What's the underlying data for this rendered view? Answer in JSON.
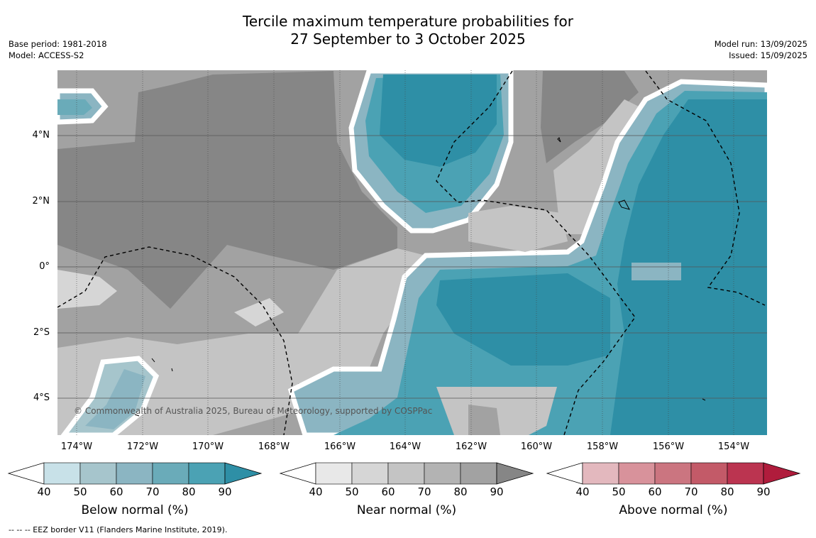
{
  "title_line1": "Tercile maximum temperature probabilities for",
  "title_line2": "27 September to 3 October 2025",
  "base_period": "Base period: 1981-2018",
  "model": "Model: ACCESS-S2",
  "model_run": "Model run: 13/09/2025",
  "issued": "Issued: 15/09/2025",
  "copyright": "© Commonwealth of Australia 2025, Bureau of Meteorology, supported by COSPPac",
  "footnote": "--  --  -- EEZ border V11 (Flanders Marine Institute, 2019).",
  "lat_labels": [
    "4°N",
    "2°N",
    "0°",
    "2°S",
    "4°S"
  ],
  "lon_labels": [
    "174°W",
    "172°W",
    "170°W",
    "168°W",
    "166°W",
    "164°W",
    "162°W",
    "160°W",
    "158°W",
    "156°W",
    "154°W"
  ],
  "colorbars": [
    {
      "name": "below",
      "label": "Below normal (%)",
      "ticks": [
        "40",
        "50",
        "60",
        "70",
        "80",
        "90"
      ],
      "colors": [
        "#c8e1e8",
        "#a6c5cc",
        "#8bb5c2",
        "#6aabb9",
        "#4ba2b4",
        "#2e8fa6"
      ]
    },
    {
      "name": "near",
      "label": "Near normal (%)",
      "ticks": [
        "40",
        "50",
        "60",
        "70",
        "80",
        "90"
      ],
      "colors": [
        "#e8e8e8",
        "#d6d6d6",
        "#c4c4c4",
        "#b3b3b3",
        "#a2a2a2",
        "#868686"
      ]
    },
    {
      "name": "above",
      "label": "Above normal (%)",
      "ticks": [
        "40",
        "50",
        "60",
        "70",
        "80",
        "90"
      ],
      "colors": [
        "#e3b8be",
        "#d8929b",
        "#cb7580",
        "#c35a68",
        "#bb3450",
        "#b01c3c"
      ]
    }
  ],
  "map_colors": {
    "near_dark": "#868686",
    "near_mid": "#a2a2a2",
    "near_light": "#c4c4c4",
    "near_pale": "#d6d6d6",
    "below_dark": "#2e8fa6",
    "below_mid": "#4ba2b4",
    "below_light": "#8bb5c2",
    "below_pale": "#a6c5cc"
  }
}
